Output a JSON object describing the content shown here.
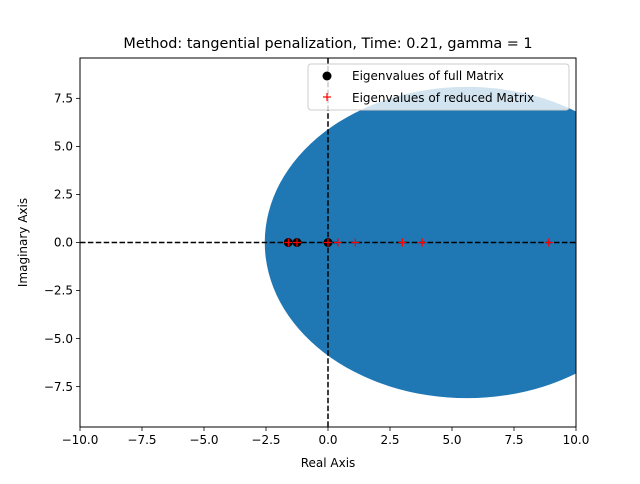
{
  "chart_data": {
    "type": "scatter",
    "title": "Method: tangential penalization, Time: 0.21, gamma = 1",
    "xlabel": "Real Axis",
    "ylabel": "Imaginary Axis",
    "xlim": [
      -10,
      10
    ],
    "ylim": [
      -9.6,
      9.6
    ],
    "x_ticks": [
      -10,
      -7.5,
      -5,
      -2.5,
      0,
      2.5,
      5,
      7.5,
      10
    ],
    "x_tick_labels": [
      "−10.0",
      "−7.5",
      "−5.0",
      "−2.5",
      "0.0",
      "2.5",
      "5.0",
      "7.5",
      "10.0"
    ],
    "y_ticks": [
      -7.5,
      -5,
      -2.5,
      0,
      2.5,
      5,
      7.5
    ],
    "y_tick_labels": [
      "−7.5",
      "−5.0",
      "−2.5",
      "0.0",
      "2.5",
      "5.0",
      "7.5"
    ],
    "grid": false,
    "legend_position": "top-right",
    "ellipse": {
      "cx": 5.6,
      "cy": 0,
      "rx": 8.15,
      "ry": 8.1,
      "color": "#1f77b4"
    },
    "reference_lines": {
      "x": 0,
      "y": 0,
      "style": "dashed",
      "color": "#000000"
    },
    "series": [
      {
        "name": "Eigenvalues of full Matrix",
        "marker": "circle",
        "color": "#000000",
        "x": [
          -1.6,
          -1.25,
          0.0
        ],
        "y": [
          0,
          0,
          0
        ]
      },
      {
        "name": "Eigenvalues of reduced Matrix",
        "marker": "plus",
        "color": "#ff0000",
        "x": [
          -1.6,
          -1.25,
          0.0,
          0.4,
          1.1,
          3.0,
          3.8,
          8.9
        ],
        "y": [
          0,
          0,
          0,
          0,
          0,
          0,
          0,
          0
        ]
      }
    ]
  }
}
